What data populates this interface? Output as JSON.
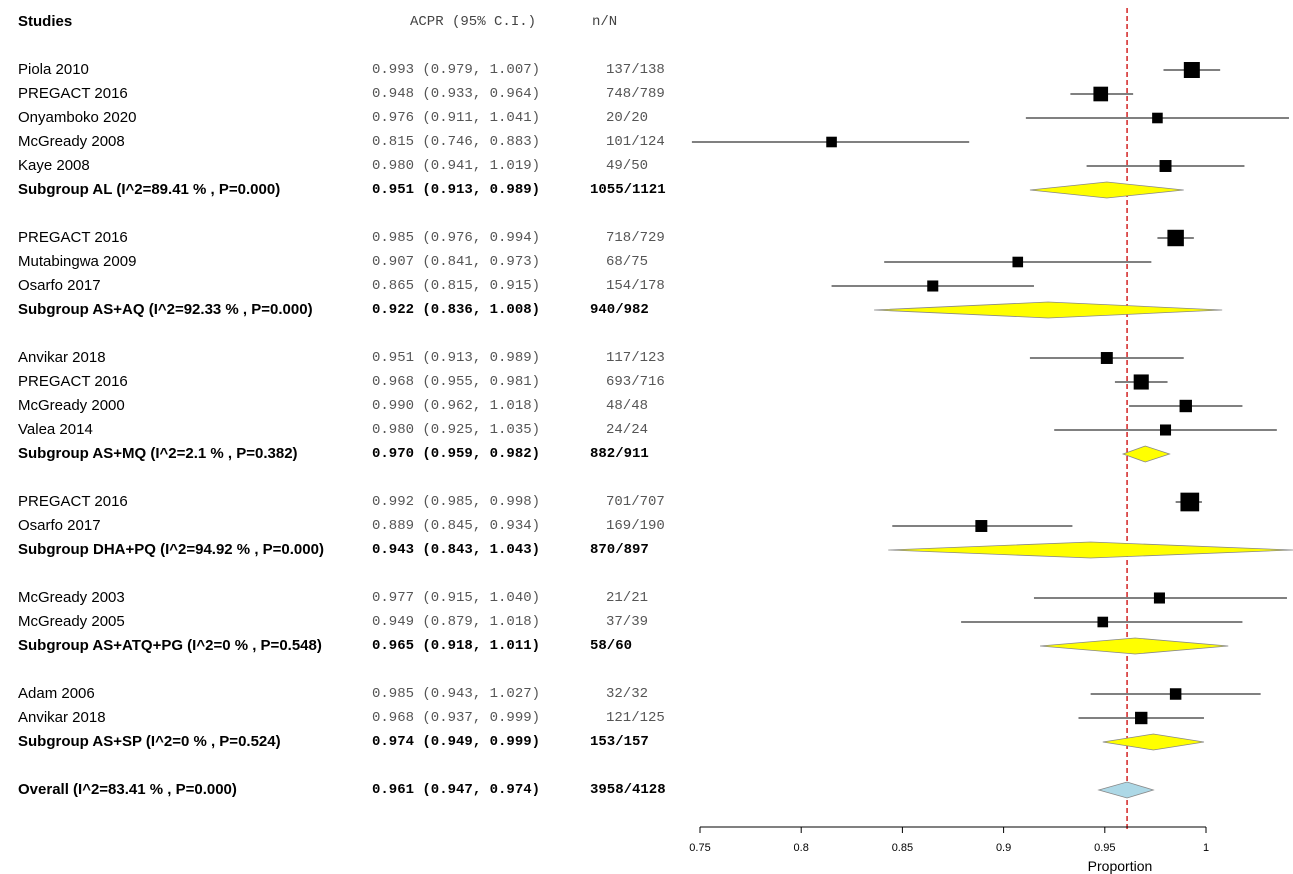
{
  "header": {
    "studies": "Studies",
    "acpr": "ACPR (95% C.I.)",
    "nN": "n/N"
  },
  "chart_data": {
    "type": "forest",
    "x_axis": {
      "label": "Proportion",
      "range": [
        0.75,
        1.04
      ],
      "ticks": [
        0.75,
        0.8,
        0.85,
        0.9,
        0.95,
        1
      ],
      "tick_labels": [
        "0.75",
        "0.8",
        "0.85",
        "0.9",
        "0.95",
        "1"
      ]
    },
    "reference_line": 0.961,
    "rows": [
      {
        "kind": "study",
        "study": "Piola 2010",
        "est": 0.993,
        "lo": 0.979,
        "hi": 1.007,
        "ci": "0.993 (0.979, 1.007)",
        "nN": "137/138",
        "weight": 1.0
      },
      {
        "kind": "study",
        "study": "PREGACT 2016",
        "est": 0.948,
        "lo": 0.933,
        "hi": 0.964,
        "ci": "0.948 (0.933, 0.964)",
        "nN": "748/789",
        "weight": 0.85
      },
      {
        "kind": "study",
        "study": "Onyamboko 2020",
        "est": 0.976,
        "lo": 0.911,
        "hi": 1.041,
        "ci": "0.976 (0.911, 1.041)",
        "nN": "20/20",
        "weight": 0.4
      },
      {
        "kind": "study",
        "study": "McGready 2008",
        "est": 0.815,
        "lo": 0.746,
        "hi": 0.883,
        "ci": "0.815 (0.746, 0.883)",
        "nN": "101/124",
        "weight": 0.4
      },
      {
        "kind": "study",
        "study": "Kaye 2008",
        "est": 0.98,
        "lo": 0.941,
        "hi": 1.019,
        "ci": "0.980 (0.941, 1.019)",
        "nN": "49/50",
        "weight": 0.55
      },
      {
        "kind": "subgroup",
        "study": "Subgroup AL (I^2=89.41 % , P=0.000)",
        "est": 0.951,
        "lo": 0.913,
        "hi": 0.989,
        "ci": "0.951 (0.913, 0.989)",
        "nN": "1055/1121"
      },
      {
        "kind": "gap"
      },
      {
        "kind": "study",
        "study": "PREGACT 2016",
        "est": 0.985,
        "lo": 0.976,
        "hi": 0.994,
        "ci": "0.985 (0.976, 0.994)",
        "nN": "718/729",
        "weight": 1.05
      },
      {
        "kind": "study",
        "study": "Mutabingwa 2009",
        "est": 0.907,
        "lo": 0.841,
        "hi": 0.973,
        "ci": "0.907 (0.841, 0.973)",
        "nN": "68/75",
        "weight": 0.4
      },
      {
        "kind": "study",
        "study": "Osarfo 2017",
        "est": 0.865,
        "lo": 0.815,
        "hi": 0.915,
        "ci": "0.865 (0.815, 0.915)",
        "nN": "154/178",
        "weight": 0.45
      },
      {
        "kind": "subgroup",
        "study": "Subgroup AS+AQ (I^2=92.33 % , P=0.000)",
        "est": 0.922,
        "lo": 0.836,
        "hi": 1.008,
        "ci": "0.922 (0.836, 1.008)",
        "nN": "940/982"
      },
      {
        "kind": "gap"
      },
      {
        "kind": "study",
        "study": "Anvikar 2018",
        "est": 0.951,
        "lo": 0.913,
        "hi": 0.989,
        "ci": "0.951 (0.913, 0.989)",
        "nN": "117/123",
        "weight": 0.55
      },
      {
        "kind": "study",
        "study": "PREGACT 2016",
        "est": 0.968,
        "lo": 0.955,
        "hi": 0.981,
        "ci": "0.968 (0.955, 0.981)",
        "nN": "693/716",
        "weight": 0.9
      },
      {
        "kind": "study",
        "study": "McGready 2000",
        "est": 0.99,
        "lo": 0.962,
        "hi": 1.018,
        "ci": "0.990 (0.962, 1.018)",
        "nN": "48/48",
        "weight": 0.6
      },
      {
        "kind": "study",
        "study": "Valea 2014",
        "est": 0.98,
        "lo": 0.925,
        "hi": 1.035,
        "ci": "0.980 (0.925, 1.035)",
        "nN": "24/24",
        "weight": 0.45
      },
      {
        "kind": "subgroup",
        "study": "Subgroup AS+MQ (I^2=2.1 % , P=0.382)",
        "est": 0.97,
        "lo": 0.959,
        "hi": 0.982,
        "ci": "0.970 (0.959, 0.982)",
        "nN": "882/911"
      },
      {
        "kind": "gap"
      },
      {
        "kind": "study",
        "study": "PREGACT  2016",
        "est": 0.992,
        "lo": 0.985,
        "hi": 0.998,
        "ci": "0.992 (0.985, 0.998)",
        "nN": "701/707",
        "weight": 1.3
      },
      {
        "kind": "study",
        "study": "Osarfo  2017",
        "est": 0.889,
        "lo": 0.845,
        "hi": 0.934,
        "ci": "0.889 (0.845, 0.934)",
        "nN": "169/190",
        "weight": 0.55
      },
      {
        "kind": "subgroup",
        "study": "Subgroup DHA+PQ (I^2=94.92 % , P=0.000)",
        "est": 0.943,
        "lo": 0.843,
        "hi": 1.043,
        "ci": "0.943 (0.843, 1.043)",
        "nN": "870/897"
      },
      {
        "kind": "gap"
      },
      {
        "kind": "study",
        "study": "McGready 2003",
        "est": 0.977,
        "lo": 0.915,
        "hi": 1.04,
        "ci": "0.977 (0.915, 1.040)",
        "nN": "21/21",
        "weight": 0.45
      },
      {
        "kind": "study",
        "study": "McGready 2005",
        "est": 0.949,
        "lo": 0.879,
        "hi": 1.018,
        "ci": "0.949 (0.879, 1.018)",
        "nN": "37/39",
        "weight": 0.4
      },
      {
        "kind": "subgroup",
        "study": "Subgroup AS+ATQ+PG (I^2=0 % , P=0.548)",
        "est": 0.965,
        "lo": 0.918,
        "hi": 1.011,
        "ci": "0.965 (0.918, 1.011)",
        "nN": "58/60"
      },
      {
        "kind": "gap"
      },
      {
        "kind": "study",
        "study": "Adam 2006",
        "est": 0.985,
        "lo": 0.943,
        "hi": 1.027,
        "ci": "0.985 (0.943, 1.027)",
        "nN": "32/32",
        "weight": 0.5
      },
      {
        "kind": "study",
        "study": "Anvikar 2018",
        "est": 0.968,
        "lo": 0.937,
        "hi": 0.999,
        "ci": "0.968 (0.937, 0.999)",
        "nN": "121/125",
        "weight": 0.6
      },
      {
        "kind": "subgroup",
        "study": "Subgroup AS+SP (I^2=0 % , P=0.524)",
        "est": 0.974,
        "lo": 0.949,
        "hi": 0.999,
        "ci": "0.974 (0.949, 0.999)",
        "nN": "153/157"
      },
      {
        "kind": "gap"
      },
      {
        "kind": "overall",
        "study": "Overall (I^2=83.41 % , P=0.000)",
        "est": 0.961,
        "lo": 0.947,
        "hi": 0.974,
        "ci": "0.961 (0.947, 0.974)",
        "nN": "3958/4128"
      }
    ],
    "colors": {
      "subgroup_diamond": "#ffff00",
      "overall_diamond": "#add8e6",
      "reference_line": "#cc0000",
      "marker": "#000000"
    }
  }
}
